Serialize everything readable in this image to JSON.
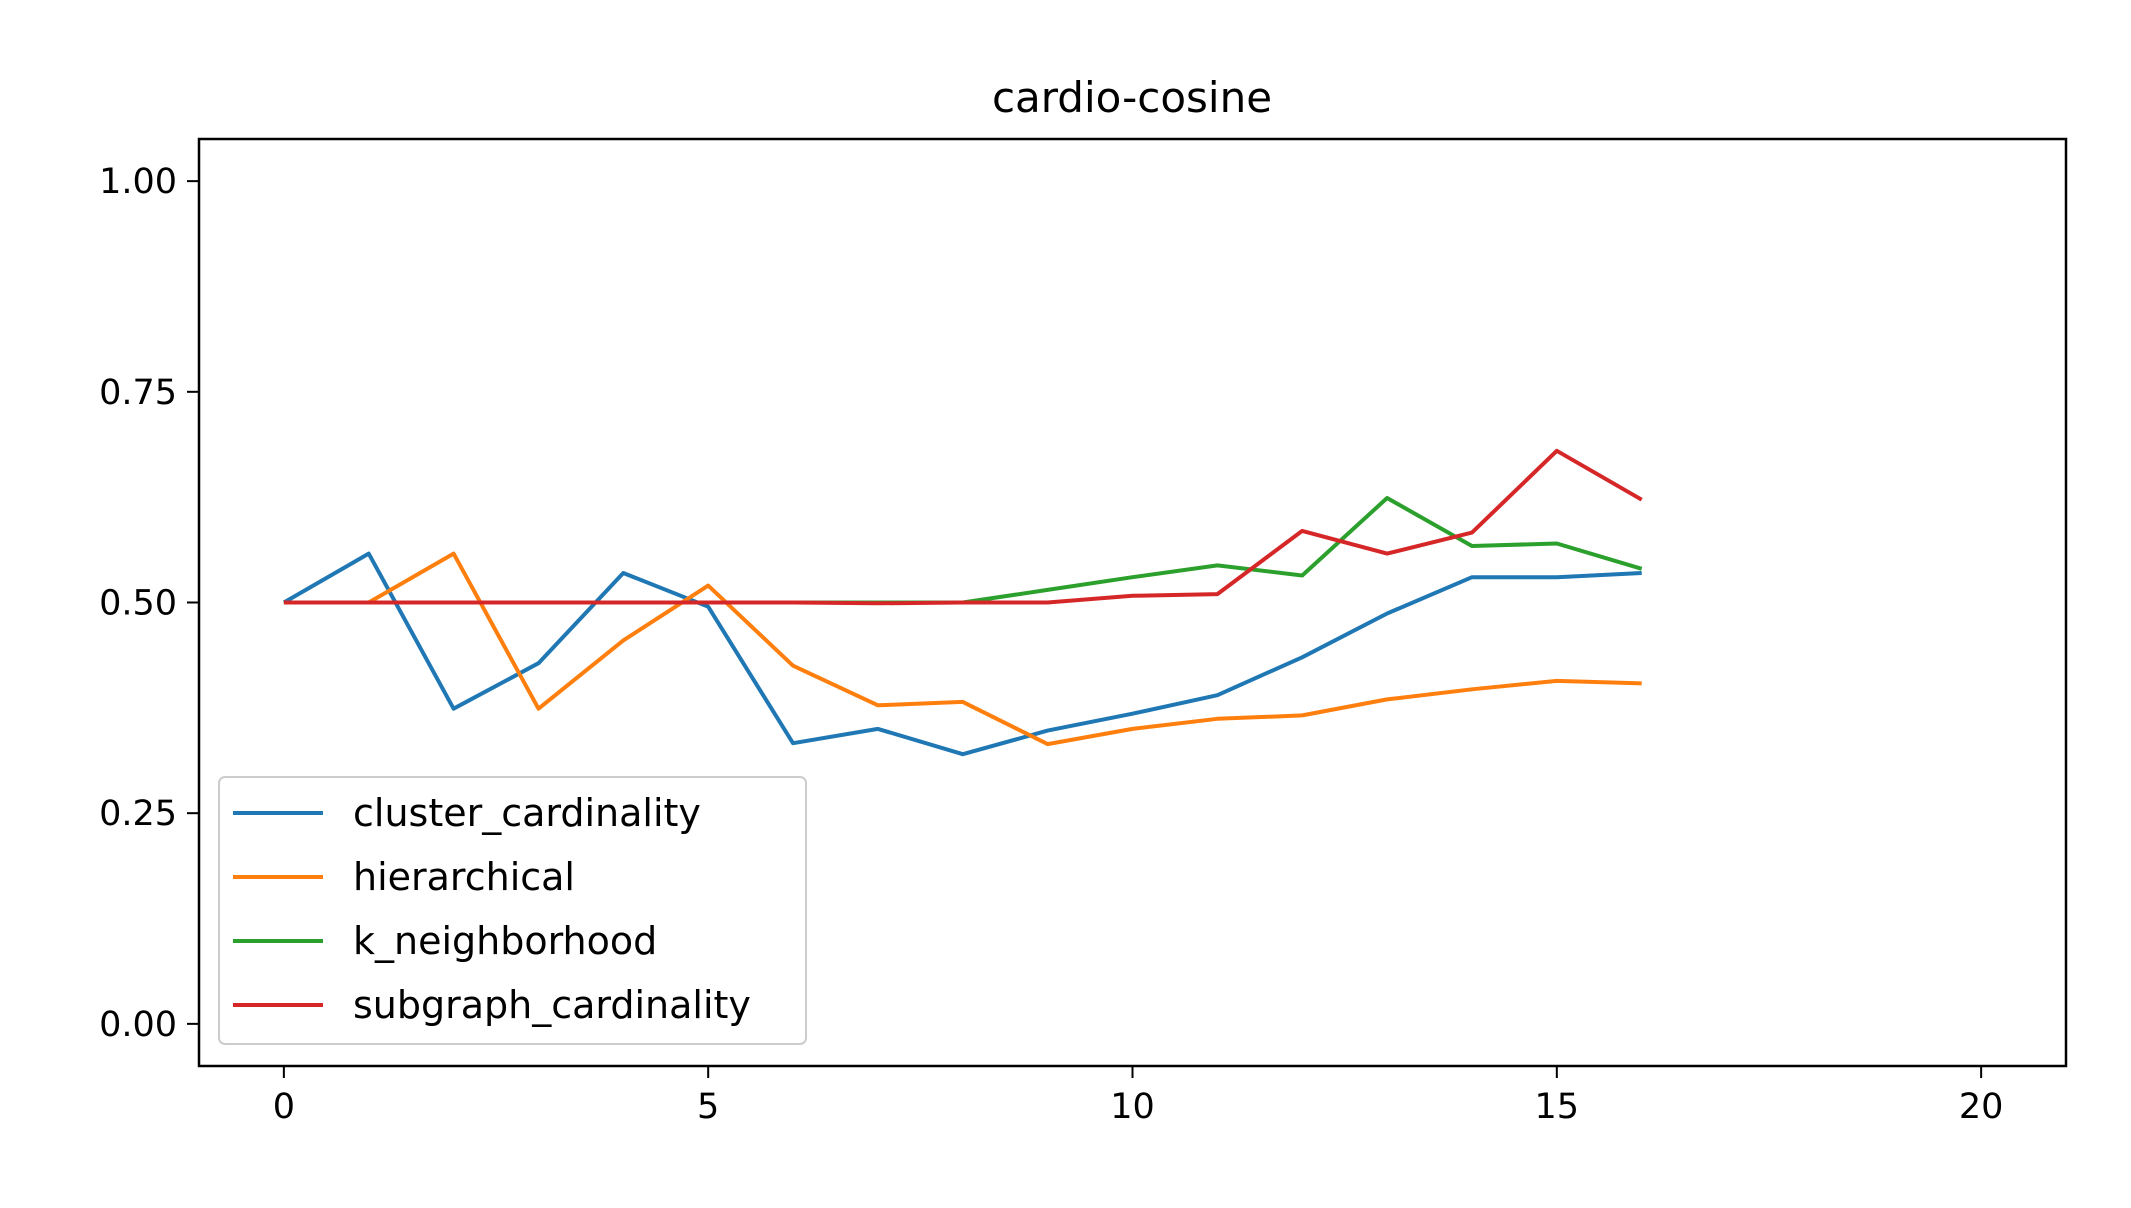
{
  "chart_data": {
    "type": "line",
    "title": "cardio-cosine",
    "xlabel": "",
    "ylabel": "",
    "xlim": [
      -1,
      21
    ],
    "ylim": [
      -0.05,
      1.05
    ],
    "xticks": [
      0,
      5,
      10,
      15,
      20
    ],
    "xtick_labels": [
      "0",
      "5",
      "10",
      "15",
      "20"
    ],
    "yticks": [
      0.0,
      0.25,
      0.5,
      0.75,
      1.0
    ],
    "ytick_labels": [
      "0.00",
      "0.25",
      "0.50",
      "0.75",
      "1.00"
    ],
    "grid": false,
    "legend_position": "lower-left",
    "x": [
      0,
      1,
      2,
      3,
      4,
      5,
      6,
      7,
      8,
      9,
      10,
      11,
      12,
      13,
      14,
      15,
      16
    ],
    "series": [
      {
        "name": "cluster_cardinality",
        "color": "#1f77b4",
        "values": [
          0.5,
          0.558,
          0.374,
          0.428,
          0.535,
          0.495,
          0.333,
          0.35,
          0.32,
          0.348,
          0.368,
          0.39,
          0.435,
          0.487,
          0.53,
          0.53,
          0.535
        ]
      },
      {
        "name": "hierarchical",
        "color": "#ff7f0e",
        "values": [
          0.5,
          0.5,
          0.558,
          0.374,
          0.455,
          0.52,
          0.425,
          0.378,
          0.382,
          0.332,
          0.35,
          0.362,
          0.366,
          0.385,
          0.397,
          0.407,
          0.404
        ]
      },
      {
        "name": "k_neighborhood",
        "color": "#2ca02c",
        "values": [
          0.5,
          0.5,
          0.5,
          0.5,
          0.5,
          0.5,
          0.5,
          0.5,
          0.5,
          0.515,
          0.53,
          0.544,
          0.532,
          0.624,
          0.567,
          0.57,
          0.54
        ]
      },
      {
        "name": "subgraph_cardinality",
        "color": "#d62728",
        "values": [
          0.5,
          0.5,
          0.5,
          0.5,
          0.5,
          0.5,
          0.5,
          0.499,
          0.5,
          0.5,
          0.508,
          0.51,
          0.585,
          0.558,
          0.583,
          0.68,
          0.622
        ]
      }
    ]
  }
}
